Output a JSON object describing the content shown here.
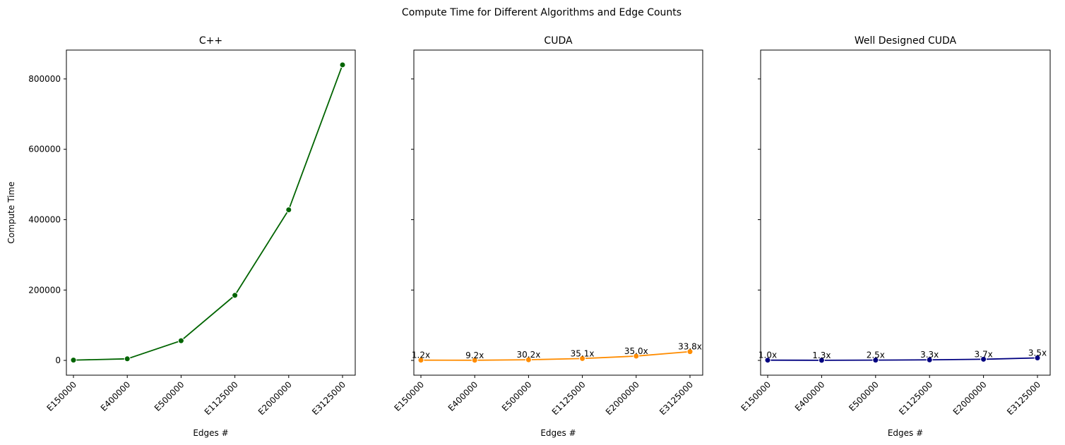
{
  "suptitle": "Compute Time for Different Algorithms and Edge Counts",
  "chart_data": [
    {
      "type": "line",
      "title": "C++",
      "xlabel": "Edges #",
      "ylabel": "Compute Time",
      "categories": [
        "E150000",
        "E400000",
        "E500000",
        "E1125000",
        "E2000000",
        "E3125000"
      ],
      "values": [
        800,
        4500,
        56000,
        185000,
        428000,
        840000
      ],
      "color": "#006400",
      "point_labels": [],
      "ylim": [
        -42000,
        882000
      ],
      "yticks": [
        0,
        200000,
        400000,
        600000,
        800000
      ],
      "grid": false
    },
    {
      "type": "line",
      "title": "CUDA",
      "xlabel": "Edges #",
      "ylabel": "",
      "categories": [
        "E150000",
        "E400000",
        "E500000",
        "E1125000",
        "E2000000",
        "E3125000"
      ],
      "values": [
        700,
        500,
        1900,
        5300,
        12200,
        24900
      ],
      "color": "#ff8c00",
      "point_labels": [
        "1.2x",
        "9.2x",
        "30.2x",
        "35.1x",
        "35.0x",
        "33.8x"
      ],
      "ylim": [
        -42000,
        882000
      ],
      "yticks": [
        0,
        200000,
        400000,
        600000,
        800000
      ],
      "grid": false
    },
    {
      "type": "line",
      "title": "Well Designed CUDA",
      "xlabel": "Edges #",
      "ylabel": "",
      "categories": [
        "E150000",
        "E400000",
        "E500000",
        "E1125000",
        "E2000000",
        "E3125000"
      ],
      "values": [
        700,
        400,
        800,
        1600,
        3300,
        7100
      ],
      "color": "#000080",
      "point_labels": [
        "1.0x",
        "1.3x",
        "2.5x",
        "3.3x",
        "3.7x",
        "3.5x"
      ],
      "ylim": [
        -42000,
        882000
      ],
      "yticks": [
        0,
        200000,
        400000,
        600000,
        800000
      ],
      "grid": false
    }
  ]
}
